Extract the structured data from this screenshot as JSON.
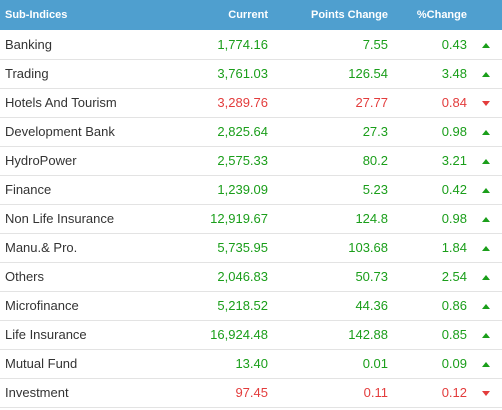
{
  "headers": {
    "name": "Sub-Indices",
    "current": "Current",
    "points": "Points Change",
    "percent": "%Change"
  },
  "colors": {
    "header_bg": "#4f9fcf",
    "up": "#1a9e1a",
    "down": "#e33c3c"
  },
  "rows": [
    {
      "name": "Banking",
      "current": "1,774.16",
      "points": "7.55",
      "percent": "0.43",
      "direction": "up"
    },
    {
      "name": "Trading",
      "current": "3,761.03",
      "points": "126.54",
      "percent": "3.48",
      "direction": "up"
    },
    {
      "name": "Hotels And Tourism",
      "current": "3,289.76",
      "points": "27.77",
      "percent": "0.84",
      "direction": "down"
    },
    {
      "name": "Development Bank",
      "current": "2,825.64",
      "points": "27.3",
      "percent": "0.98",
      "direction": "up"
    },
    {
      "name": "HydroPower",
      "current": "2,575.33",
      "points": "80.2",
      "percent": "3.21",
      "direction": "up"
    },
    {
      "name": "Finance",
      "current": "1,239.09",
      "points": "5.23",
      "percent": "0.42",
      "direction": "up"
    },
    {
      "name": "Non Life Insurance",
      "current": "12,919.67",
      "points": "124.8",
      "percent": "0.98",
      "direction": "up"
    },
    {
      "name": "Manu.& Pro.",
      "current": "5,735.95",
      "points": "103.68",
      "percent": "1.84",
      "direction": "up"
    },
    {
      "name": "Others",
      "current": "2,046.83",
      "points": "50.73",
      "percent": "2.54",
      "direction": "up"
    },
    {
      "name": "Microfinance",
      "current": "5,218.52",
      "points": "44.36",
      "percent": "0.86",
      "direction": "up"
    },
    {
      "name": "Life Insurance",
      "current": "16,924.48",
      "points": "142.88",
      "percent": "0.85",
      "direction": "up"
    },
    {
      "name": "Mutual Fund",
      "current": "13.40",
      "points": "0.01",
      "percent": "0.09",
      "direction": "up"
    },
    {
      "name": "Investment",
      "current": "97.45",
      "points": "0.11",
      "percent": "0.12",
      "direction": "down"
    }
  ]
}
